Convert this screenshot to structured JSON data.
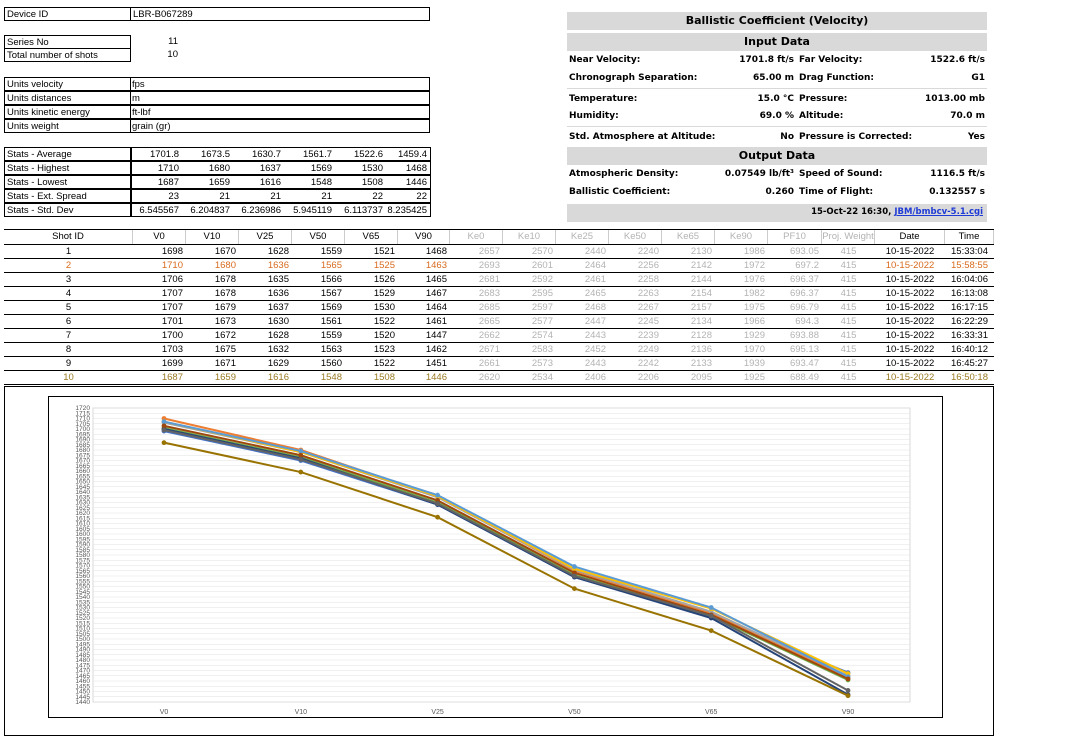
{
  "device": {
    "label": "Device ID",
    "value": "LBR-B067289"
  },
  "series": {
    "label": "Series No",
    "value": "11"
  },
  "shots_total": {
    "label": "Total number of shots",
    "value": "10"
  },
  "units": [
    {
      "label": "Units velocity",
      "value": "fps"
    },
    {
      "label": "Units distances",
      "value": "m"
    },
    {
      "label": "Units kinetic energy",
      "value": "ft-lbf"
    },
    {
      "label": "Units weight",
      "value": "grain (gr)"
    }
  ],
  "stats": [
    {
      "label": "Stats - Average",
      "values": [
        "1701.8",
        "1673.5",
        "1630.7",
        "1561.7",
        "1522.6",
        "1459.4"
      ]
    },
    {
      "label": "Stats - Highest",
      "values": [
        "1710",
        "1680",
        "1637",
        "1569",
        "1530",
        "1468"
      ]
    },
    {
      "label": "Stats - Lowest",
      "values": [
        "1687",
        "1659",
        "1616",
        "1548",
        "1508",
        "1446"
      ]
    },
    {
      "label": "Stats - Ext. Spread",
      "values": [
        "23",
        "21",
        "21",
        "21",
        "22",
        "22"
      ]
    },
    {
      "label": "Stats - Std. Dev",
      "values": [
        "6.545567",
        "6.204837",
        "6.236986",
        "5.945119",
        "6.113737",
        "8.235425"
      ]
    }
  ],
  "bc": {
    "title": "Ballistic Coefficient (Velocity)",
    "input_header": "Input Data",
    "output_header": "Output Data",
    "near_velocity_label": "Near Velocity:",
    "near_velocity_value": "1701.8 ft/s",
    "far_velocity_label": "Far Velocity:",
    "far_velocity_value": "1522.6 ft/s",
    "chrono_sep_label": "Chronograph Separation:",
    "chrono_sep_value": "65.00 m",
    "drag_label": "Drag Function:",
    "drag_value": "G1",
    "temp_label": "Temperature:",
    "temp_value": "15.0 °C",
    "pressure_label": "Pressure:",
    "pressure_value": "1013.00 mb",
    "humidity_label": "Humidity:",
    "humidity_value": "69.0 %",
    "altitude_label": "Altitude:",
    "altitude_value": "70.0 m",
    "std_atm_label": "Std. Atmosphere at Altitude:",
    "std_atm_value": "No",
    "press_corr_label": "Pressure is Corrected:",
    "press_corr_value": "Yes",
    "density_label": "Atmospheric Density:",
    "density_value": "0.07549 lb/ft³",
    "sound_label": "Speed of Sound:",
    "sound_value": "1116.5 ft/s",
    "bcoef_label": "Ballistic Coefficient:",
    "bcoef_value": "0.260",
    "tof_label": "Time of Flight:",
    "tof_value": "0.132557 s",
    "footer_date": "15-Oct-22 16:30, ",
    "footer_link1": "JBM",
    "footer_link2": "/bmbcv-5.1.cgi"
  },
  "shots_table": {
    "headers": [
      "Shot ID",
      "V0",
      "V10",
      "V25",
      "V50",
      "V65",
      "V90",
      "Ke0",
      "Ke10",
      "Ke25",
      "Ke50",
      "Ke65",
      "Ke90",
      "PF10",
      "Proj. Weight",
      "Date",
      "Time"
    ],
    "rows": [
      [
        "1",
        "1698",
        "1670",
        "1628",
        "1559",
        "1521",
        "1468",
        "2657",
        "2570",
        "2440",
        "2240",
        "2130",
        "1986",
        "693.05",
        "415",
        "10-15-2022",
        "15:33:04"
      ],
      [
        "2",
        "1710",
        "1680",
        "1636",
        "1565",
        "1525",
        "1463",
        "2693",
        "2601",
        "2464",
        "2256",
        "2142",
        "1972",
        "697.2",
        "415",
        "10-15-2022",
        "15:58:55"
      ],
      [
        "3",
        "1706",
        "1678",
        "1635",
        "1566",
        "1526",
        "1465",
        "2681",
        "2592",
        "2461",
        "2258",
        "2144",
        "1976",
        "696.37",
        "415",
        "10-15-2022",
        "16:04:06"
      ],
      [
        "4",
        "1707",
        "1678",
        "1636",
        "1567",
        "1529",
        "1467",
        "2683",
        "2595",
        "2465",
        "2263",
        "2154",
        "1982",
        "696.37",
        "415",
        "10-15-2022",
        "16:13:08"
      ],
      [
        "5",
        "1707",
        "1679",
        "1637",
        "1569",
        "1530",
        "1464",
        "2685",
        "2597",
        "2468",
        "2267",
        "2157",
        "1975",
        "696.79",
        "415",
        "10-15-2022",
        "16:17:15"
      ],
      [
        "6",
        "1701",
        "1673",
        "1630",
        "1561",
        "1522",
        "1461",
        "2665",
        "2577",
        "2447",
        "2245",
        "2134",
        "1966",
        "694.3",
        "415",
        "10-15-2022",
        "16:22:29"
      ],
      [
        "7",
        "1700",
        "1672",
        "1628",
        "1559",
        "1520",
        "1447",
        "2662",
        "2574",
        "2443",
        "2239",
        "2128",
        "1929",
        "693.88",
        "415",
        "10-15-2022",
        "16:33:31"
      ],
      [
        "8",
        "1703",
        "1675",
        "1632",
        "1563",
        "1523",
        "1462",
        "2671",
        "2583",
        "2452",
        "2249",
        "2136",
        "1970",
        "695.13",
        "415",
        "10-15-2022",
        "16:40:12"
      ],
      [
        "9",
        "1699",
        "1671",
        "1629",
        "1560",
        "1522",
        "1451",
        "2661",
        "2573",
        "2443",
        "2242",
        "2133",
        "1939",
        "693.47",
        "415",
        "10-15-2022",
        "16:45:27"
      ],
      [
        "10",
        "1687",
        "1659",
        "1616",
        "1548",
        "1508",
        "1446",
        "2620",
        "2534",
        "2406",
        "2206",
        "2095",
        "1925",
        "688.49",
        "415",
        "10-15-2022",
        "16:50:18"
      ]
    ]
  },
  "chart_data": {
    "type": "line",
    "categories": [
      "V0",
      "V10",
      "V25",
      "V50",
      "V65",
      "V90"
    ],
    "ylim": [
      1440,
      1720
    ],
    "ytick_step": 5,
    "grid": true,
    "series": [
      {
        "values": [
          1698,
          1670,
          1628,
          1559,
          1521,
          1468
        ],
        "color": "#4472c4"
      },
      {
        "values": [
          1710,
          1680,
          1636,
          1565,
          1525,
          1463
        ],
        "color": "#ed7d31"
      },
      {
        "values": [
          1706,
          1678,
          1635,
          1566,
          1526,
          1465
        ],
        "color": "#a5a5a5"
      },
      {
        "values": [
          1707,
          1678,
          1636,
          1567,
          1529,
          1467
        ],
        "color": "#ffc000"
      },
      {
        "values": [
          1707,
          1679,
          1637,
          1569,
          1530,
          1464
        ],
        "color": "#5b9bd5"
      },
      {
        "values": [
          1701,
          1673,
          1630,
          1561,
          1522,
          1461
        ],
        "color": "#70ad47"
      },
      {
        "values": [
          1700,
          1672,
          1628,
          1559,
          1520,
          1447
        ],
        "color": "#264478"
      },
      {
        "values": [
          1703,
          1675,
          1632,
          1563,
          1523,
          1462
        ],
        "color": "#9e480e"
      },
      {
        "values": [
          1699,
          1671,
          1629,
          1560,
          1522,
          1451
        ],
        "color": "#636363"
      },
      {
        "values": [
          1687,
          1659,
          1616,
          1548,
          1508,
          1446
        ],
        "color": "#997300"
      }
    ]
  }
}
